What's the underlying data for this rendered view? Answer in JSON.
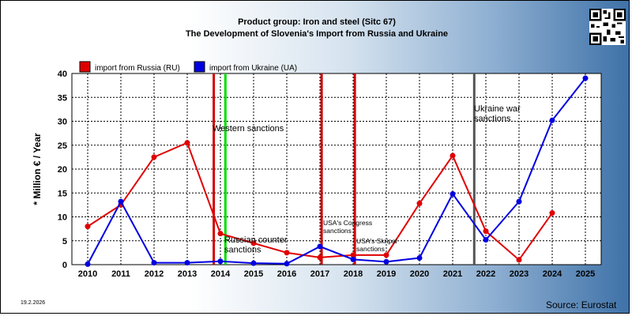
{
  "header": {
    "title_line1": "Product group: Iron and steel (Sitc 67)",
    "title_line2": "The Development of Slovenia's Import from  Russia and Ukraine"
  },
  "footer": {
    "date": "19.2.2026",
    "source": "Source: Eurostat"
  },
  "colors": {
    "russia": "#e00000",
    "ukraine": "#0000e0",
    "sanction_red": "#d00000",
    "sanction_green": "#00dd00",
    "war_line": "#555555"
  },
  "chart_data": {
    "type": "line",
    "ylabel": "* Million € / Year",
    "ylim": [
      0,
      40
    ],
    "yticks": [
      "0",
      "5",
      "10",
      "15",
      "20",
      "25",
      "30",
      "35",
      "40"
    ],
    "x": [
      "2010",
      "2011",
      "2012",
      "2013",
      "2014",
      "2015",
      "2016",
      "2017",
      "2018",
      "2019",
      "2020",
      "2021",
      "2022",
      "2023",
      "2024",
      "2025"
    ],
    "grid": true,
    "legend_position": "top-left",
    "series": [
      {
        "name": "import from Russia (RU)",
        "color": "#e00000",
        "values": [
          8.0,
          12.5,
          22.5,
          25.5,
          6.5,
          4.5,
          2.5,
          1.5,
          2.0,
          2.0,
          12.8,
          22.8,
          7.0,
          1.0,
          10.8,
          null
        ]
      },
      {
        "name": "import from Ukraine (UA)",
        "color": "#0000e0",
        "values": [
          0.1,
          13.2,
          0.4,
          0.4,
          0.7,
          0.3,
          0.2,
          3.8,
          1.1,
          0.6,
          1.4,
          14.8,
          5.2,
          13.2,
          30.2,
          39.0
        ]
      }
    ],
    "events": [
      {
        "x": 2013.8,
        "color": "#d00000",
        "label": ""
      },
      {
        "x": 2014.15,
        "color": "#00dd00",
        "label": "Western sanctions"
      },
      {
        "x": 2017.05,
        "color": "#d00000",
        "label": "USA's Congress sanctions"
      },
      {
        "x": 2018.05,
        "color": "#d00000",
        "label": "USA's Skripal sanctions"
      },
      {
        "x": 2021.65,
        "color": "#555555",
        "label": "Ukraine war sanctions"
      }
    ],
    "annotations": [
      {
        "text": "Western sanctions"
      },
      {
        "text": "Russian counter sanctions"
      },
      {
        "text": "USA's Congress sanctions"
      },
      {
        "text": "USA's Skripal sanctions"
      },
      {
        "text": "Ukraine war sanctions"
      }
    ]
  }
}
